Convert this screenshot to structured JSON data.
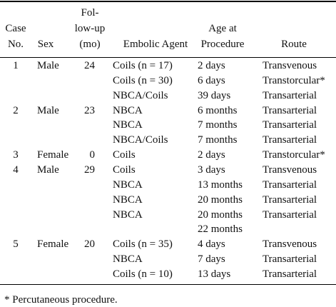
{
  "table": {
    "header": [
      [
        "Case",
        "No."
      ],
      [
        "Sex"
      ],
      [
        "Fol-",
        "low-up",
        "(mo)"
      ],
      [
        "Embolic Agent"
      ],
      [
        "Age at",
        "Procedure"
      ],
      [
        "Route"
      ]
    ],
    "cases": [
      {
        "case": 1,
        "sex": "Male",
        "followup": 24,
        "procedures": [
          {
            "agent": "Coils (n = 17)",
            "age": "2 days",
            "route": "Transvenous"
          },
          {
            "agent": "Coils (n = 30)",
            "age": "6 days",
            "route": "Transtorcular*"
          },
          {
            "agent": "NBCA/Coils",
            "age": "39 days",
            "route": "Transarterial"
          }
        ]
      },
      {
        "case": 2,
        "sex": "Male",
        "followup": 23,
        "procedures": [
          {
            "agent": "NBCA",
            "age": "6 months",
            "route": "Transarterial"
          },
          {
            "agent": "NBCA",
            "age": "7 months",
            "route": "Transarterial"
          },
          {
            "agent": "NBCA/Coils",
            "age": "7 months",
            "route": "Transarterial"
          }
        ]
      },
      {
        "case": 3,
        "sex": "Female",
        "followup": 0,
        "procedures": [
          {
            "agent": "Coils",
            "age": "2 days",
            "route": "Transtorcular*"
          }
        ]
      },
      {
        "case": 4,
        "sex": "Male",
        "followup": 29,
        "procedures": [
          {
            "agent": "Coils",
            "age": "3 days",
            "route": "Transvenous"
          },
          {
            "agent": "NBCA",
            "age": "13 months",
            "route": "Transarterial"
          },
          {
            "agent": "NBCA",
            "age": "20 months",
            "route": "Transarterial"
          },
          {
            "agent": "NBCA",
            "age": "20 months",
            "route": "Transarterial"
          },
          {
            "age": "22 months"
          }
        ]
      },
      {
        "case": 5,
        "sex": "Female",
        "followup": 20,
        "procedures": [
          {
            "agent": "Coils (n = 35)",
            "age": "4 days",
            "route": "Transvenous"
          },
          {
            "agent": "NBCA",
            "age": "7 days",
            "route": "Transarterial"
          },
          {
            "agent": "Coils (n = 10)",
            "age": "13 days",
            "route": "Transarterial"
          }
        ]
      }
    ]
  },
  "footnote": "* Percutaneous procedure."
}
